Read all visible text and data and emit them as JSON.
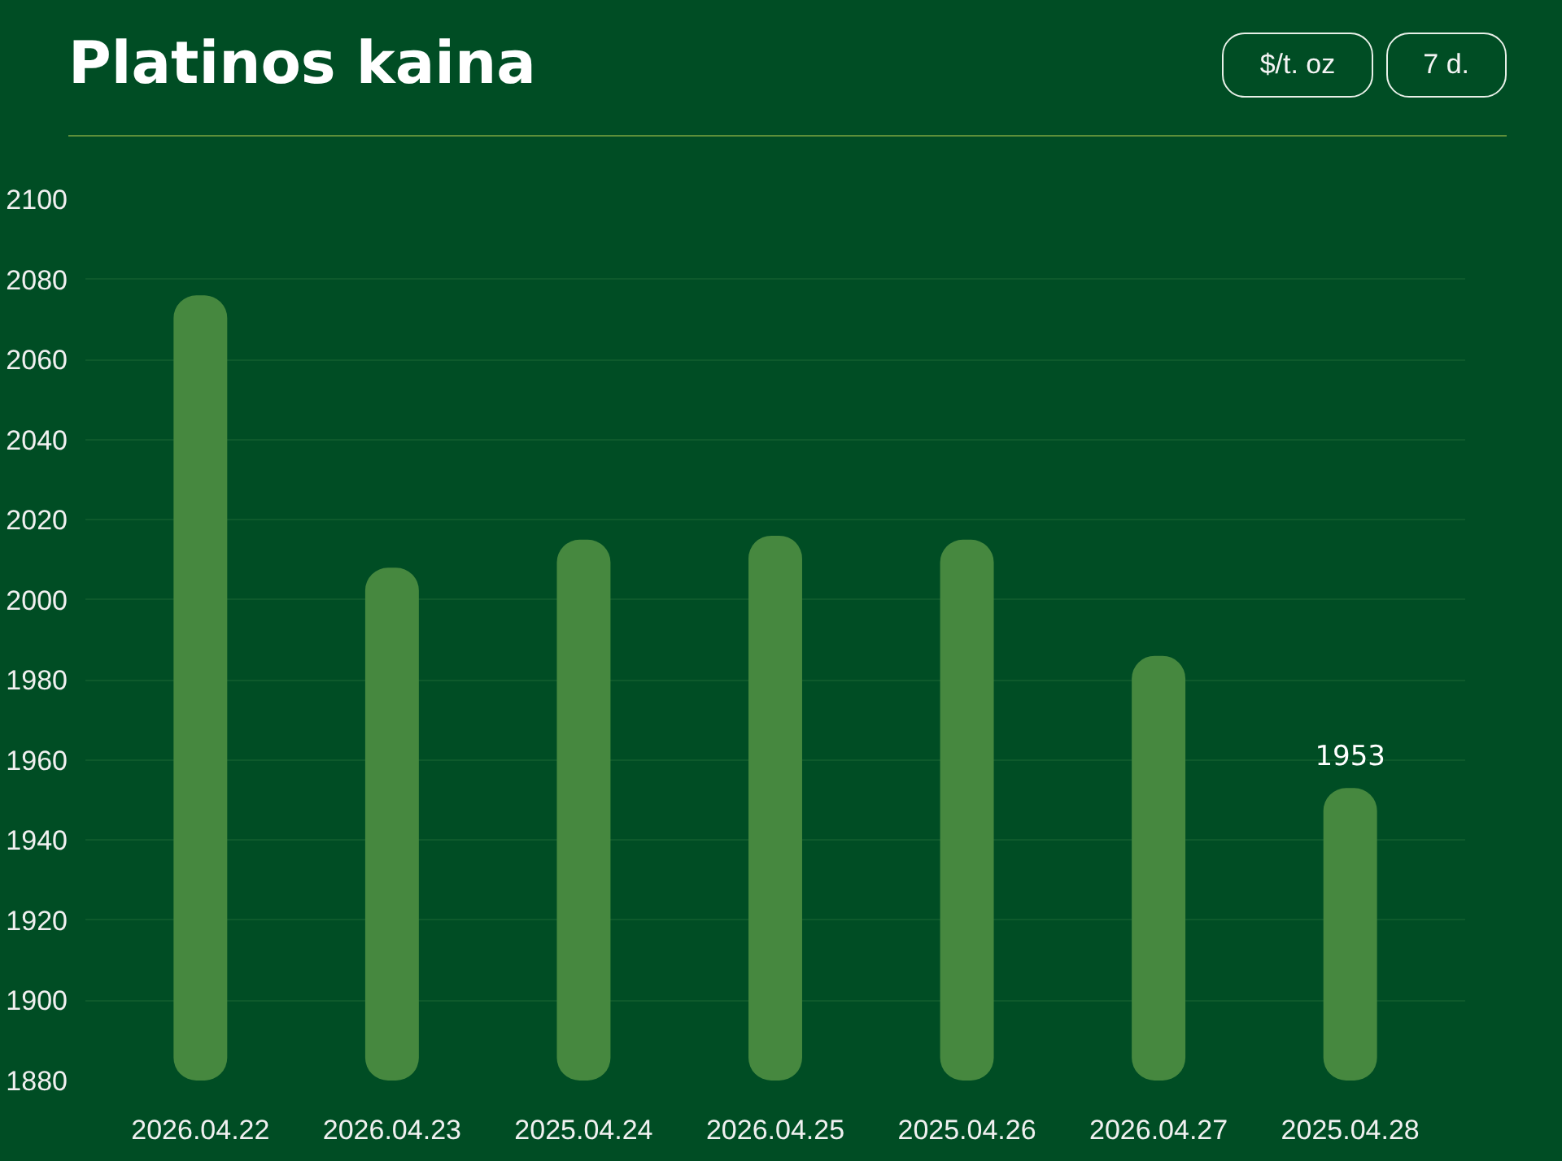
{
  "chart_data": {
    "type": "bar",
    "title": "Platinos kaina",
    "annotations": [
      "$/t. oz",
      "7 d."
    ],
    "categories": [
      "2026.04.22",
      "2026.04.23",
      "2025.04.24",
      "2026.04.25",
      "2025.04.26",
      "2026.04.27",
      "2025.04.28"
    ],
    "values": [
      2076,
      2008,
      2015,
      2016,
      2015,
      1986,
      1953
    ],
    "value_labels": [
      null,
      null,
      null,
      null,
      null,
      null,
      "1953"
    ],
    "color": "#46883f",
    "ylim": [
      1880,
      2100
    ],
    "yticks": [
      1880,
      1900,
      1920,
      1940,
      1960,
      1980,
      2000,
      2020,
      2040,
      2060,
      2080,
      2100
    ],
    "grid": "y"
  }
}
